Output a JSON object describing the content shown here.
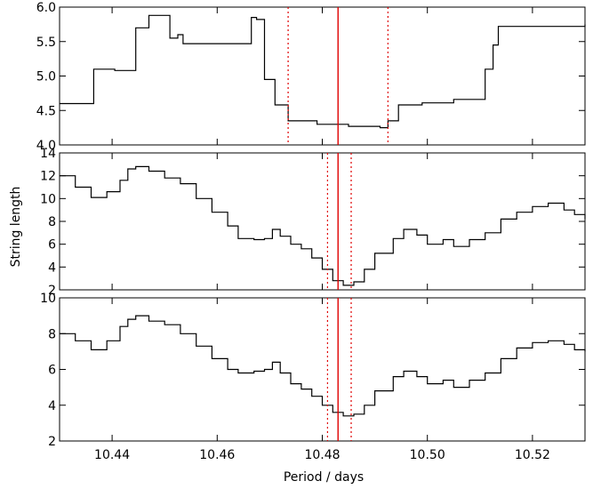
{
  "chart_data": {
    "type": "line",
    "xlabel": "Period / days",
    "ylabel": "String length",
    "xlim": [
      10.43,
      10.53
    ],
    "x_ticks": [
      10.44,
      10.46,
      10.48,
      10.5,
      10.52
    ],
    "x_tick_labels": [
      "10.44",
      "10.46",
      "10.48",
      "10.50",
      "10.52"
    ],
    "best_period": 10.483,
    "best_period_color": "#e00000",
    "series_color": "#000000",
    "panels": [
      {
        "ylim": [
          4.0,
          6.0
        ],
        "y_ticks": [
          4.0,
          4.5,
          5.0,
          5.5,
          6.0
        ],
        "y_tick_labels": [
          "4.0",
          "4.5",
          "5.0",
          "5.5",
          "6.0"
        ],
        "uncertainty": [
          10.4735,
          10.4925
        ],
        "x": [
          10.43,
          10.4365,
          10.4405,
          10.4445,
          10.447,
          10.451,
          10.4525,
          10.4535,
          10.4665,
          10.4675,
          10.469,
          10.471,
          10.4735,
          10.479,
          10.485,
          10.491,
          10.4925,
          10.4945,
          10.499,
          10.505,
          10.511,
          10.5125,
          10.5135,
          10.53
        ],
        "y": [
          4.6,
          5.1,
          5.08,
          5.7,
          5.88,
          5.55,
          5.6,
          5.47,
          5.85,
          5.82,
          4.95,
          4.58,
          4.35,
          4.3,
          4.27,
          4.25,
          4.35,
          4.58,
          4.61,
          4.66,
          5.1,
          5.45,
          5.72,
          5.75
        ]
      },
      {
        "ylim": [
          2,
          14
        ],
        "y_ticks": [
          2,
          4,
          6,
          8,
          10,
          12,
          14
        ],
        "y_tick_labels": [
          "2",
          "4",
          "6",
          "8",
          "10",
          "12",
          "14"
        ],
        "uncertainty": [
          10.481,
          10.4855
        ],
        "x": [
          10.43,
          10.433,
          10.436,
          10.439,
          10.4415,
          10.443,
          10.4445,
          10.447,
          10.45,
          10.453,
          10.456,
          10.459,
          10.462,
          10.464,
          10.467,
          10.469,
          10.4705,
          10.472,
          10.474,
          10.476,
          10.478,
          10.48,
          10.482,
          10.484,
          10.486,
          10.488,
          10.49,
          10.4935,
          10.4955,
          10.498,
          10.5,
          10.503,
          10.505,
          10.508,
          10.511,
          10.514,
          10.517,
          10.52,
          10.523,
          10.526,
          10.528,
          10.53
        ],
        "y": [
          12.0,
          11.0,
          10.1,
          10.6,
          11.6,
          12.6,
          12.8,
          12.4,
          11.8,
          11.3,
          10.0,
          8.8,
          7.6,
          6.5,
          6.4,
          6.5,
          7.3,
          6.7,
          6.0,
          5.6,
          4.8,
          3.8,
          2.8,
          2.4,
          2.7,
          3.8,
          5.2,
          6.5,
          7.3,
          6.8,
          6.0,
          6.4,
          5.8,
          6.4,
          7.0,
          8.2,
          8.8,
          9.3,
          9.6,
          9.0,
          8.6,
          8.2
        ]
      },
      {
        "ylim": [
          2,
          10
        ],
        "y_ticks": [
          2,
          4,
          6,
          8,
          10
        ],
        "y_tick_labels": [
          "2",
          "4",
          "6",
          "8",
          "10"
        ],
        "uncertainty": [
          10.481,
          10.4855
        ],
        "x": [
          10.43,
          10.433,
          10.436,
          10.439,
          10.4415,
          10.443,
          10.4445,
          10.447,
          10.45,
          10.453,
          10.456,
          10.459,
          10.462,
          10.464,
          10.467,
          10.469,
          10.4705,
          10.472,
          10.474,
          10.476,
          10.478,
          10.48,
          10.482,
          10.484,
          10.486,
          10.488,
          10.49,
          10.4935,
          10.4955,
          10.498,
          10.5,
          10.503,
          10.505,
          10.508,
          10.511,
          10.514,
          10.517,
          10.52,
          10.523,
          10.526,
          10.528,
          10.53
        ],
        "y": [
          8.0,
          7.6,
          7.1,
          7.6,
          8.4,
          8.8,
          9.0,
          8.7,
          8.5,
          8.0,
          7.3,
          6.6,
          6.0,
          5.8,
          5.9,
          6.0,
          6.4,
          5.8,
          5.2,
          4.9,
          4.5,
          4.0,
          3.6,
          3.4,
          3.5,
          4.0,
          4.8,
          5.6,
          5.9,
          5.6,
          5.2,
          5.4,
          5.0,
          5.4,
          5.8,
          6.6,
          7.2,
          7.5,
          7.6,
          7.4,
          7.1,
          7.0
        ]
      }
    ]
  }
}
